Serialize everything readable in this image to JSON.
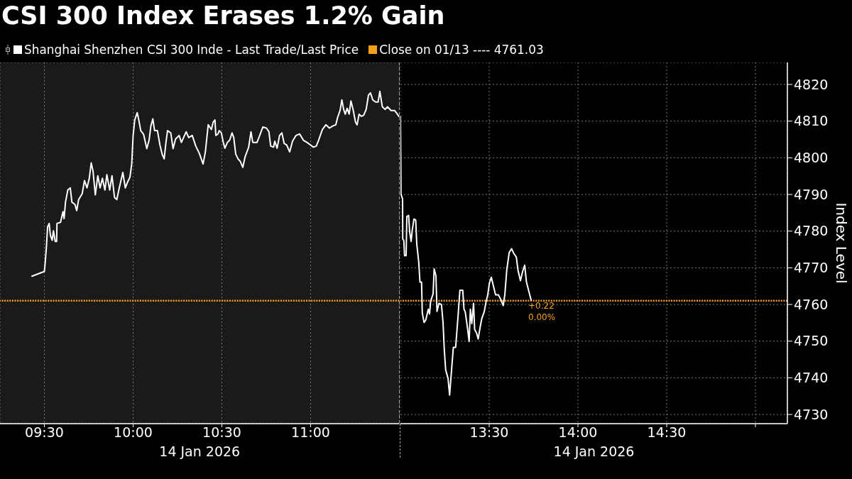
{
  "chart_data": [
    {
      "type": "line",
      "title": "CSI 300 Index Erases 1.2% Gain",
      "xlabel": "14 Jan 2026",
      "grid": true,
      "tick_labels": "x",
      "xlim": [
        9.25,
        11.5
      ],
      "xticks": [
        {
          "value": 9.5,
          "label": "09:30"
        },
        {
          "value": 10,
          "label": "10:00"
        },
        {
          "value": 10.5,
          "label": "10:30"
        },
        {
          "value": 11,
          "label": "11:00"
        }
      ],
      "ylim": [
        4727.5,
        4826
      ],
      "yticks": [
        4730,
        4740,
        4750,
        4760,
        4770,
        4780,
        4790,
        4800,
        4810,
        4820
      ],
      "ref_lines": [
        {
          "axis": "y",
          "value": 4761.03,
          "color": "#f5a01a",
          "line_style": "dotted"
        }
      ],
      "x": [
        9.43,
        9.5,
        9.504,
        9.511,
        9.518,
        9.527,
        9.534,
        9.544,
        9.551,
        9.561,
        9.569,
        9.571,
        9.591,
        9.605,
        9.611,
        9.619,
        9.632,
        9.646,
        9.655,
        9.672,
        9.682,
        9.693,
        9.713,
        9.726,
        9.74,
        9.753,
        9.764,
        9.774,
        9.787,
        9.801,
        9.814,
        9.827,
        9.841,
        9.852,
        9.868,
        9.881,
        9.895,
        9.908,
        9.922,
        9.942,
        9.956,
        9.969,
        9.982,
        9.992,
        10.0,
        10.009,
        10.023,
        10.032,
        10.043,
        10.059,
        10.077,
        10.09,
        10.1,
        10.111,
        10.121,
        10.137,
        10.151,
        10.164,
        10.175,
        10.185,
        10.194,
        10.212,
        10.225,
        10.239,
        10.259,
        10.272,
        10.299,
        10.313,
        10.333,
        10.353,
        10.373,
        10.394,
        10.407,
        10.423,
        10.441,
        10.451,
        10.461,
        10.466,
        10.478,
        10.485,
        10.497,
        10.508,
        10.517,
        10.531,
        10.544,
        10.557,
        10.567,
        10.578,
        10.591,
        10.604,
        10.618,
        10.631,
        10.651,
        10.664,
        10.674,
        10.698,
        10.711,
        10.731,
        10.751,
        10.765,
        10.775,
        10.791,
        10.798,
        10.811,
        10.825,
        10.838,
        10.851,
        10.865,
        10.882,
        10.898,
        10.918,
        10.938,
        10.959,
        10.979,
        10.999,
        11.016,
        11.032,
        11.045,
        11.066,
        11.086,
        11.106,
        11.126,
        11.142,
        11.152,
        11.166,
        11.176,
        11.186,
        11.195,
        11.206,
        11.217,
        11.227,
        11.239,
        11.253,
        11.262,
        11.273,
        11.286,
        11.299,
        11.313,
        11.326,
        11.337,
        11.35,
        11.366,
        11.38,
        11.39,
        11.404,
        11.42,
        11.433,
        11.453,
        11.473,
        11.489,
        11.497
      ],
      "series": [
        {
          "color": "#ffffff",
          "values": [
            4767.7,
            4769.0,
            4771.0,
            4775.3,
            4781.1,
            4782.1,
            4778.8,
            4777.5,
            4780.1,
            4777.2,
            4777.2,
            4782.1,
            4782.4,
            4785.3,
            4783.4,
            4787.9,
            4791.2,
            4791.8,
            4787.9,
            4787.3,
            4785.6,
            4788.6,
            4790.2,
            4793.8,
            4791.8,
            4794.4,
            4798.6,
            4796.4,
            4789.9,
            4795.1,
            4791.8,
            4794.4,
            4791.2,
            4795.4,
            4791.2,
            4795.1,
            4789.2,
            4788.6,
            4791.8,
            4796.0,
            4791.8,
            4793.4,
            4794.7,
            4798.3,
            4806.1,
            4810.3,
            4812.3,
            4810.3,
            4807.4,
            4806.4,
            4802.5,
            4804.8,
            4808.7,
            4810.6,
            4807.4,
            4807.4,
            4803.5,
            4800.9,
            4799.7,
            4804.2,
            4807.4,
            4806.8,
            4802.5,
            4805.1,
            4806.1,
            4804.2,
            4807.1,
            4805.5,
            4806.1,
            4803.2,
            4801.2,
            4798.3,
            4801.6,
            4809.0,
            4807.7,
            4809.7,
            4810.3,
            4806.1,
            4806.5,
            4807.4,
            4806.8,
            4804.2,
            4802.6,
            4804.2,
            4804.8,
            4806.8,
            4805.5,
            4801.0,
            4799.7,
            4799.0,
            4797.4,
            4800.3,
            4802.9,
            4807.1,
            4804.2,
            4804.2,
            4805.8,
            4808.4,
            4808.1,
            4807.1,
            4803.2,
            4802.9,
            4804.5,
            4802.6,
            4806.1,
            4806.8,
            4803.9,
            4803.5,
            4801.6,
            4804.5,
            4806.1,
            4806.5,
            4804.8,
            4804.2,
            4803.5,
            4802.9,
            4803.2,
            4804.8,
            4807.7,
            4809.0,
            4808.1,
            4808.7,
            4809.0,
            4811.0,
            4812.9,
            4815.8,
            4813.2,
            4811.9,
            4813.5,
            4811.9,
            4815.5,
            4813.2,
            4809.7,
            4809.0,
            4811.9,
            4811.3,
            4811.6,
            4813.2,
            4817.1,
            4817.7,
            4815.8,
            4815.2,
            4815.2,
            4818.1,
            4813.9,
            4813.2,
            4813.9,
            4812.9,
            4812.9,
            4811.9,
            4811.3
          ]
        }
      ]
    },
    {
      "type": "line",
      "xlabel": "14 Jan 2026",
      "ylabel": "Index Level",
      "grid": true,
      "legend": "top left",
      "xlim": [
        13,
        15.18
      ],
      "xticks": [
        {
          "value": 13.5,
          "label": "13:30"
        },
        {
          "value": 14,
          "label": "14:00"
        },
        {
          "value": 14.5,
          "label": "14:30"
        },
        {
          "value": 15,
          "label": null
        }
      ],
      "ylim": [
        4727.5,
        4826
      ],
      "yticks": [
        4730,
        4740,
        4750,
        4760,
        4770,
        4780,
        4790,
        4800,
        4810,
        4820
      ],
      "ref_lines": [
        {
          "axis": "y",
          "value": 4761.03,
          "label": "Close on 01/13 ---- 4761.03",
          "color": "#f5a01a",
          "line_style": "dotted"
        }
      ],
      "annotations": [
        {
          "text": "+0.22",
          "x": 13.736,
          "y": 4761.2
        },
        {
          "text": "0.00%",
          "x": 13.736,
          "y": 4761.2
        }
      ],
      "x": [
        13.0,
        13.003,
        13.012,
        13.013,
        13.019,
        13.023,
        13.032,
        13.036,
        13.046,
        13.052,
        13.06,
        13.067,
        13.076,
        13.086,
        13.092,
        13.103,
        13.11,
        13.119,
        13.123,
        13.133,
        13.143,
        13.157,
        13.164,
        13.17,
        13.184,
        13.19,
        13.2,
        13.206,
        13.217,
        13.231,
        13.24,
        13.247,
        13.255,
        13.268,
        13.277,
        13.287,
        13.298,
        13.311,
        13.324,
        13.335,
        13.351,
        13.358,
        13.365,
        13.378,
        13.387,
        13.394,
        13.402,
        13.412,
        13.418,
        13.429,
        13.438,
        13.448,
        13.458,
        13.472,
        13.483,
        13.492,
        13.501,
        13.512,
        13.523,
        13.536,
        13.552,
        13.566,
        13.579,
        13.588,
        13.599,
        13.613,
        13.626,
        13.639,
        13.653,
        13.662,
        13.676,
        13.689,
        13.7,
        13.71,
        13.727,
        13.736
      ],
      "series": [
        {
          "name": "Shanghai Shenzhen CSI 300 Inde - Last Trade/Last Price",
          "color": "#ffffff",
          "values": [
            4811.3,
            4790.1,
            4788.8,
            4777.8,
            4777.5,
            4773.3,
            4773.3,
            4784.0,
            4784.3,
            4779.8,
            4777.2,
            4780.4,
            4783.3,
            4783.0,
            4776.5,
            4771.6,
            4766.1,
            4766.1,
            4757.7,
            4755.1,
            4755.8,
            4758.7,
            4757.4,
            4760.9,
            4762.9,
            4769.7,
            4767.8,
            4758.1,
            4760.3,
            4760.0,
            4755.1,
            4747.7,
            4742.1,
            4739.9,
            4735.3,
            4741.5,
            4748.3,
            4748.3,
            4756.4,
            4763.9,
            4763.9,
            4758.7,
            4758.0,
            4753.5,
            4749.9,
            4758.7,
            4754.8,
            4760.3,
            4753.2,
            4752.2,
            4750.6,
            4753.5,
            4756.1,
            4758.0,
            4760.9,
            4762.6,
            4765.8,
            4767.4,
            4765.2,
            4762.6,
            4762.6,
            4761.3,
            4759.7,
            4762.6,
            4769.4,
            4774.2,
            4775.2,
            4773.9,
            4772.9,
            4769.4,
            4766.5,
            4769.1,
            4770.7,
            4766.1,
            4762.9,
            4761.2
          ]
        }
      ]
    }
  ]
}
